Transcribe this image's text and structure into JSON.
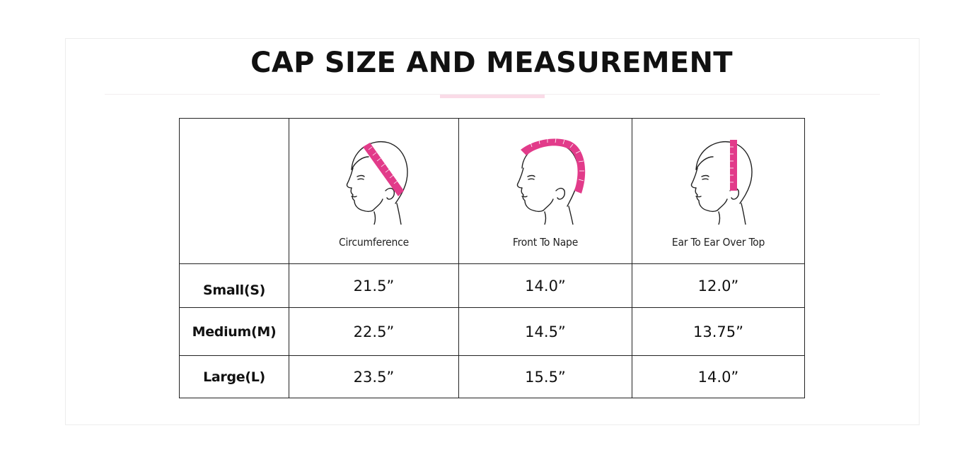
{
  "title": "CAP SIZE AND MEASUREMENT",
  "colors": {
    "accent_pink": "#e23b8a",
    "rule_accent": "#fadbe7",
    "border": "#222222"
  },
  "columns": [
    {
      "label": "Circumference",
      "icon": "head-circumference-icon"
    },
    {
      "label": "Front To Nape",
      "icon": "head-front-to-nape-icon"
    },
    {
      "label": "Ear To Ear Over Top",
      "icon": "head-ear-to-ear-icon"
    }
  ],
  "rows": [
    {
      "size": "Small(S)",
      "values": [
        "21.5”",
        "14.0”",
        "12.0”"
      ]
    },
    {
      "size": "Medium(M)",
      "values": [
        "22.5”",
        "14.5”",
        "13.75”"
      ]
    },
    {
      "size": "Large(L)",
      "values": [
        "23.5”",
        "15.5”",
        "14.0”"
      ]
    }
  ]
}
